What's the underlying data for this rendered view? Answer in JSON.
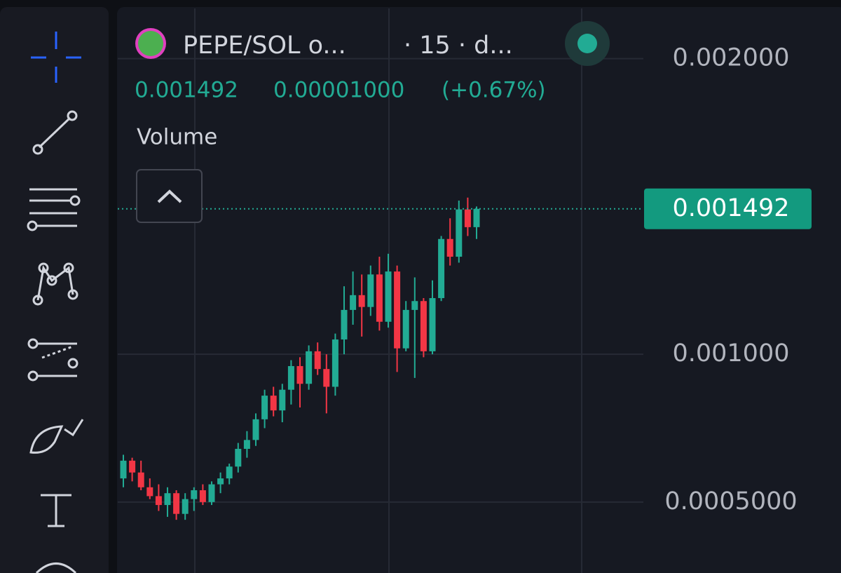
{
  "chart_data": {
    "type": "candlestick",
    "symbol": "PEPE/SOL o...",
    "interval": "· 15 · d...",
    "last_price": 0.001492,
    "change": "0.00001000",
    "change_pct": "(+0.67%)",
    "indicator": "Volume",
    "up_color": "#22ab94",
    "down_color": "#f23645",
    "open": [
      0.00058,
      0.00064,
      0.0006,
      0.00055,
      0.00052,
      0.00049,
      0.00053,
      0.00046,
      0.00051,
      0.00054,
      0.0005,
      0.00056,
      0.00058,
      0.00062,
      0.00068,
      0.00071,
      0.00078,
      0.00086,
      0.00081,
      0.00088,
      0.00096,
      0.0009,
      0.00101,
      0.00095,
      0.00089,
      0.00105,
      0.00115,
      0.0012,
      0.00116,
      0.00127,
      0.00111,
      0.00128,
      0.00102,
      0.00115,
      0.00118,
      0.00101,
      0.00119,
      0.00139,
      0.00133,
      0.00149,
      0.00143
    ],
    "high": [
      0.00066,
      0.00065,
      0.00064,
      0.00058,
      0.00056,
      0.00055,
      0.00054,
      0.00053,
      0.00055,
      0.00056,
      0.00057,
      0.0006,
      0.00063,
      0.0007,
      0.00074,
      0.0008,
      0.00088,
      0.00089,
      0.0009,
      0.00098,
      0.00099,
      0.00103,
      0.00104,
      0.001,
      0.00107,
      0.00123,
      0.00128,
      0.00127,
      0.0013,
      0.00133,
      0.00134,
      0.0013,
      0.00118,
      0.00126,
      0.00119,
      0.00125,
      0.0014,
      0.00146,
      0.00152,
      0.00153,
      0.0015
    ],
    "low": [
      0.00055,
      0.00057,
      0.00054,
      0.00051,
      0.00047,
      0.00045,
      0.00044,
      0.00044,
      0.00047,
      0.00049,
      0.00049,
      0.00053,
      0.00056,
      0.0006,
      0.00065,
      0.00069,
      0.00075,
      0.00079,
      0.00077,
      0.00083,
      0.00082,
      0.00088,
      0.00093,
      0.0008,
      0.00086,
      0.001,
      0.0011,
      0.00106,
      0.00113,
      0.00108,
      0.00109,
      0.00094,
      0.00101,
      0.00092,
      0.00099,
      0.001,
      0.00118,
      0.0013,
      0.00131,
      0.0014,
      0.00139
    ],
    "close": [
      0.00064,
      0.0006,
      0.00055,
      0.00052,
      0.00049,
      0.00053,
      0.00046,
      0.00051,
      0.00054,
      0.0005,
      0.00056,
      0.00058,
      0.00062,
      0.00068,
      0.00071,
      0.00078,
      0.00086,
      0.00081,
      0.00088,
      0.00096,
      0.0009,
      0.00101,
      0.00095,
      0.00089,
      0.00105,
      0.00115,
      0.0012,
      0.00116,
      0.00127,
      0.00111,
      0.00128,
      0.00102,
      0.00115,
      0.00118,
      0.00101,
      0.00119,
      0.00139,
      0.00133,
      0.00149,
      0.00143,
      0.001492
    ],
    "ylim": [
      0.00026,
      0.00217
    ],
    "yticks": [
      {
        "value": 0.002,
        "label": "0.002000"
      },
      {
        "value": 0.001,
        "label": "0.001000"
      },
      {
        "value": 0.0005,
        "label": "0.0005000"
      }
    ],
    "grid": true
  }
}
